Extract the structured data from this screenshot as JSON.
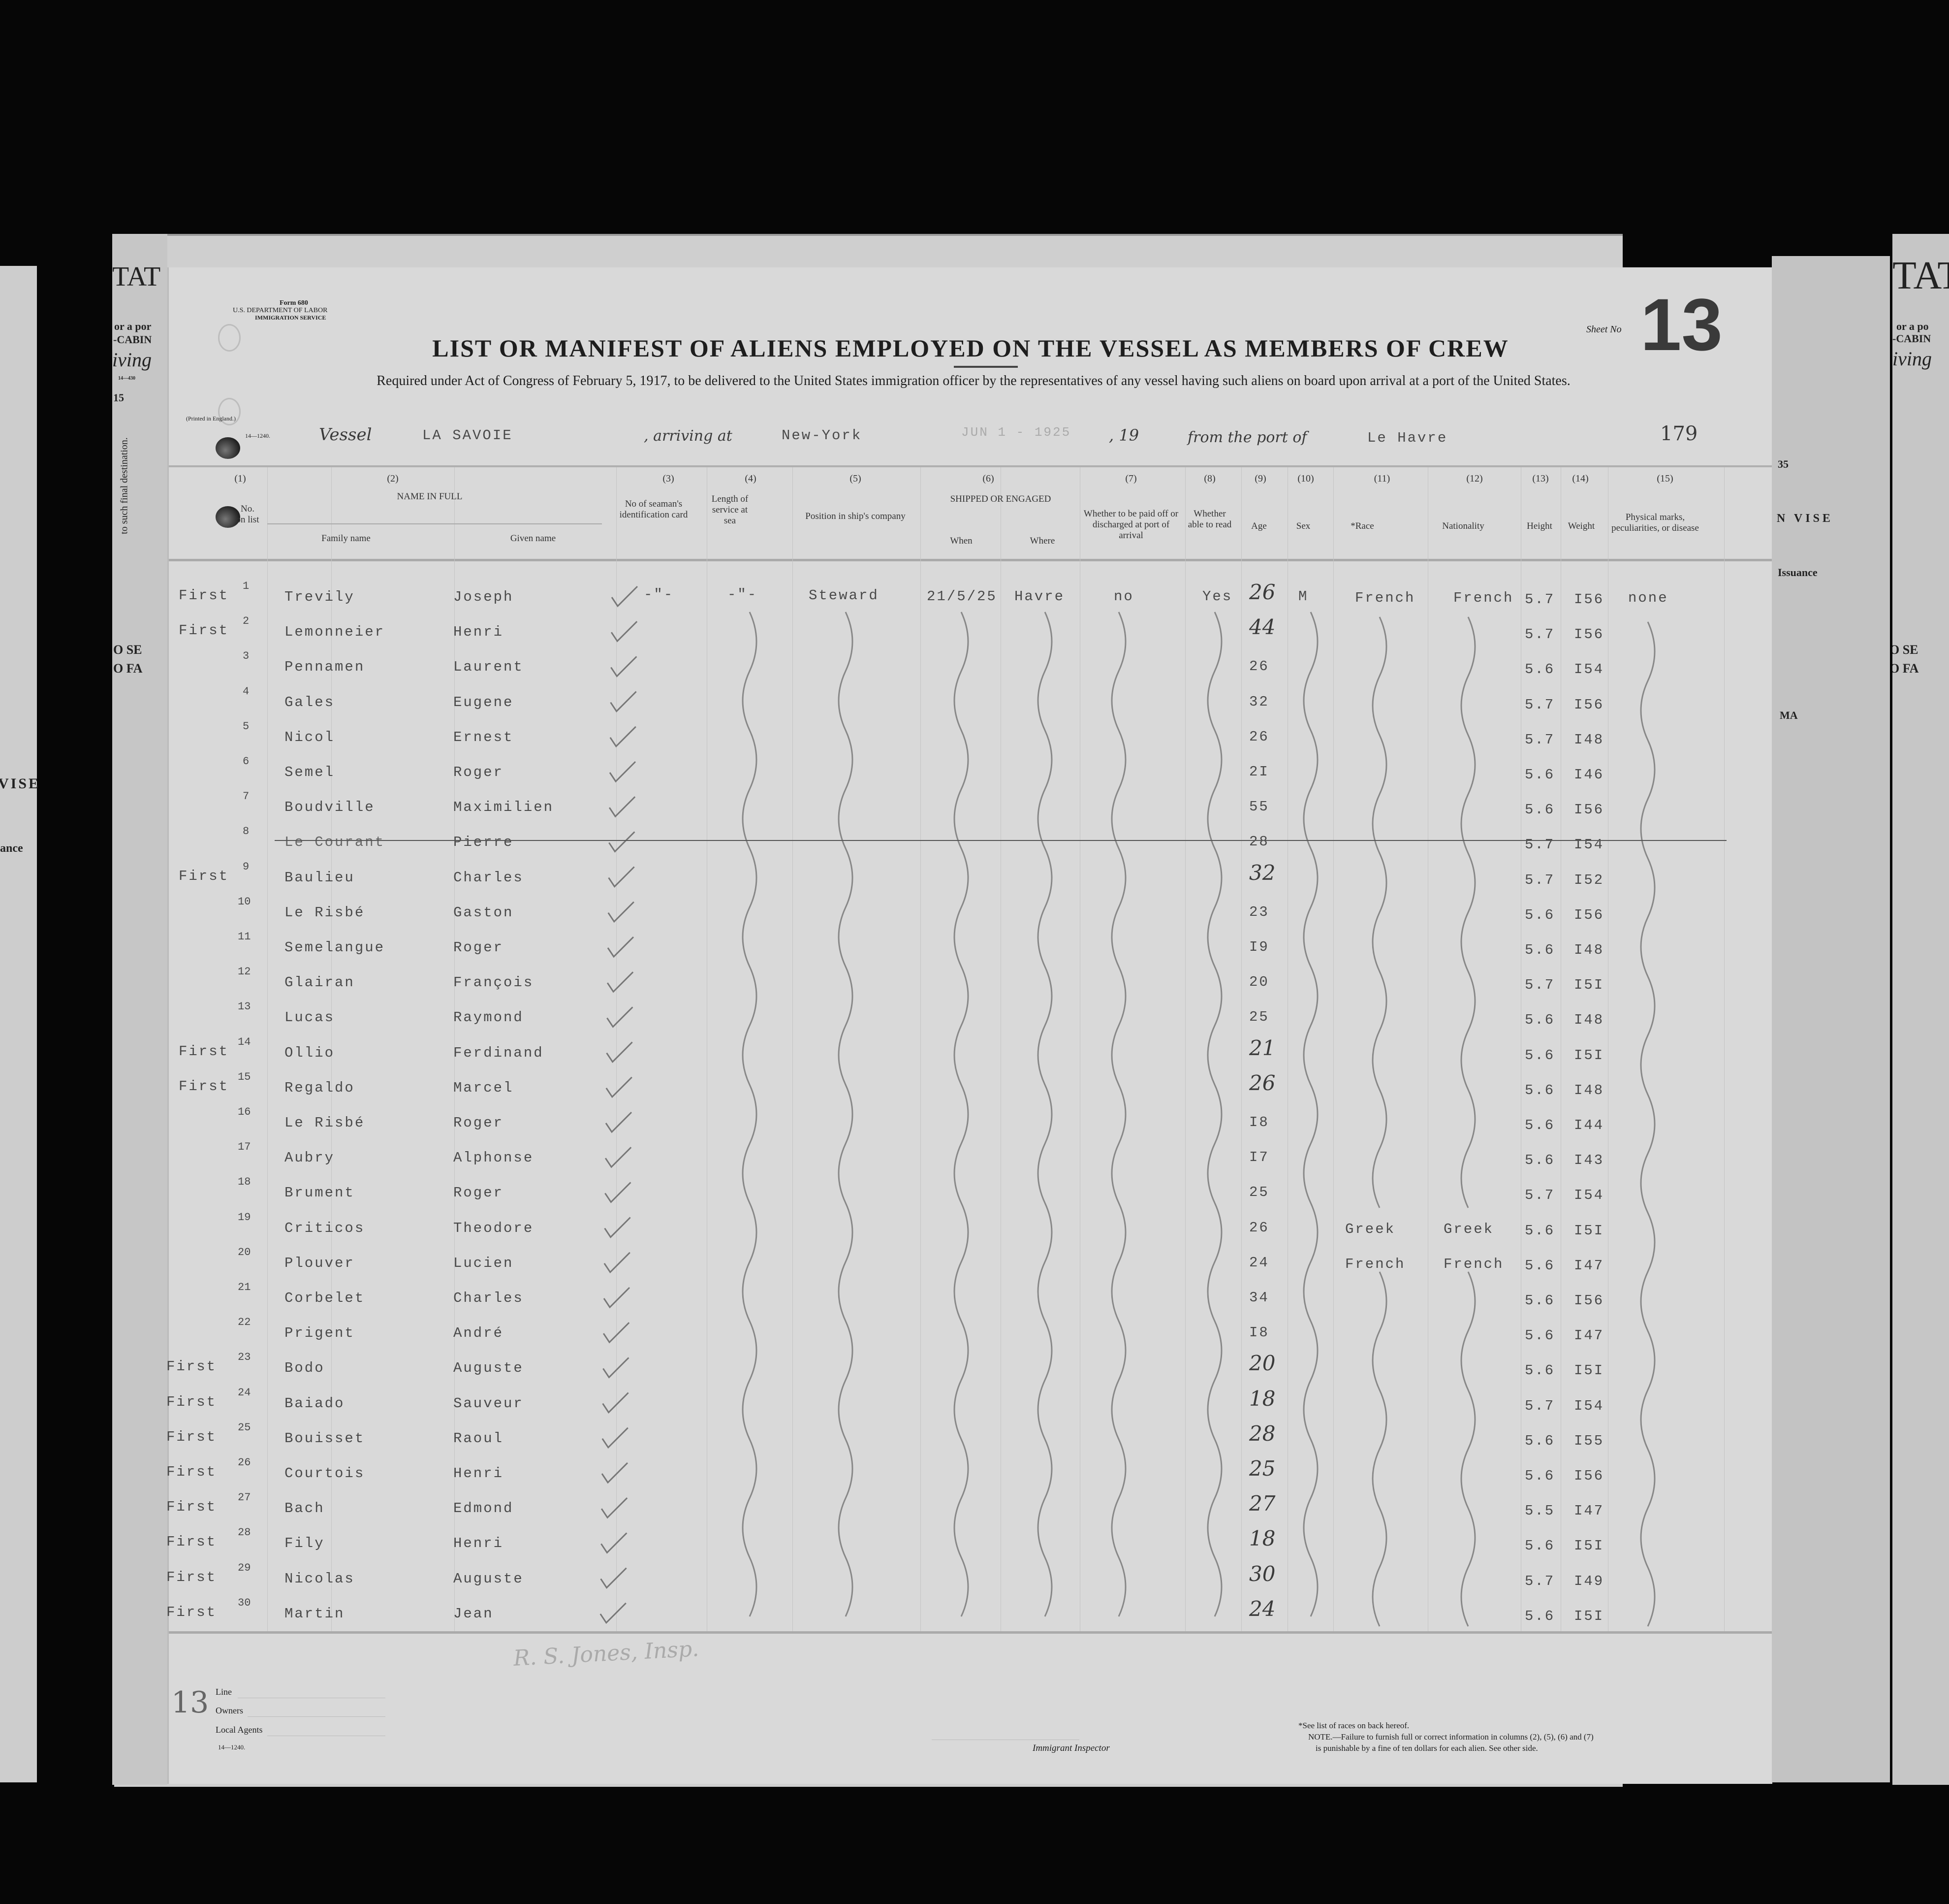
{
  "left_strip": {
    "big": "TAT",
    "l1": "or a por",
    "l2": "-CABIN",
    "l3": "iving",
    "code": "14—430",
    "num": "15",
    "vert": "to such final destination.",
    "vise": "VISE",
    "ance": "ance",
    "r1": "O SE",
    "r2": "O FA"
  },
  "right_strip": {
    "big": "TAT",
    "l1": "or a po",
    "l2": "-CABIN",
    "l3": "iving",
    "num35": "35",
    "vise": "N VISE",
    "issuance": "Issuance",
    "ma": "MA",
    "r1": "O SE",
    "r2": "O FA"
  },
  "form": {
    "form_no": "Form 680",
    "dept": "U.S. DEPARTMENT OF LABOR",
    "service": "IMMIGRATION SERVICE",
    "printed": "(Printed in England.)",
    "code": "14—1240.",
    "sheet_label": "Sheet No",
    "sheet_no": "13",
    "title": "LIST OR MANIFEST OF ALIENS EMPLOYED ON THE VESSEL AS MEMBERS OF CREW",
    "subtitle": "Required under Act of Congress of February 5, 1917, to be delivered to the United States immigration officer by the representatives of any vessel having such aliens on board upon arrival at a port of the United States.",
    "vessel_label": "Vessel",
    "vessel": "LA SAVOIE",
    "arriving_label": ", arriving at",
    "arriving": "New-York",
    "date_stamp": "JUN 1 - 1925",
    "year_label": ", 19",
    "from_label": "from the port of",
    "from_port": "Le Havre",
    "page_no": "179"
  },
  "columns": {
    "nums": [
      "(1)",
      "(2)",
      "(3)",
      "(4)",
      "(5)",
      "(6)",
      "(7)",
      "(8)",
      "(9)",
      "(10)",
      "(11)",
      "(12)",
      "(13)",
      "(14)",
      "(15)"
    ],
    "no_on_list": "No. on list",
    "name_in_full": "NAME IN FULL",
    "family": "Family name",
    "given": "Given name",
    "id_card": "No of seaman's identification card",
    "length": "Length of service at sea",
    "position": "Position in ship's company",
    "shipped": "SHIPPED OR ENGAGED",
    "when": "When",
    "where": "Where",
    "paid_off": "Whether to be paid off or discharged at port of arrival",
    "read": "Whether able to read",
    "age": "Age",
    "sex": "Sex",
    "race": "*Race",
    "nationality": "Nationality",
    "height": "Height",
    "weight": "Weight",
    "marks": "Physical marks, peculiarities, or disease"
  },
  "first_row": {
    "id_card": "-\"-",
    "length": "-\"-",
    "position": "Steward",
    "when": "21/5/25",
    "where": "Havre",
    "paid_off": "no",
    "read": "Yes",
    "sex": "M",
    "marks": "none"
  },
  "rows": [
    {
      "cls": "First",
      "no": "1",
      "family": "Trevily",
      "given": "Joseph",
      "age": "26",
      "hand": true,
      "race": "French",
      "nat": "French",
      "h": "5.7",
      "w": "I56"
    },
    {
      "cls": "First",
      "no": "2",
      "family": "Lemonneier",
      "given": "Henri",
      "age": "44",
      "hand": true,
      "h": "5.7",
      "w": "I56"
    },
    {
      "cls": "",
      "no": "3",
      "family": "Pennamen",
      "given": "Laurent",
      "age": "26",
      "h": "5.6",
      "w": "I54"
    },
    {
      "cls": "",
      "no": "4",
      "family": "Gales",
      "given": "Eugene",
      "age": "32",
      "h": "5.7",
      "w": "I56"
    },
    {
      "cls": "",
      "no": "5",
      "family": "Nicol",
      "given": "Ernest",
      "age": "26",
      "h": "5.7",
      "w": "I48"
    },
    {
      "cls": "",
      "no": "6",
      "family": "Semel",
      "given": "Roger",
      "age": "2I",
      "h": "5.6",
      "w": "I46"
    },
    {
      "cls": "",
      "no": "7",
      "family": "Boudville",
      "given": "Maximilien",
      "age": "55",
      "h": "5.6",
      "w": "I56"
    },
    {
      "cls": "",
      "no": "8",
      "family": "Le Courant",
      "given": "Pierre",
      "age": "28",
      "h": "5.7",
      "w": "I54",
      "struck": true
    },
    {
      "cls": "First",
      "no": "9",
      "family": "Baulieu",
      "given": "Charles",
      "age": "32",
      "hand": true,
      "h": "5.7",
      "w": "I52"
    },
    {
      "cls": "",
      "no": "10",
      "family": "Le Risbé",
      "given": "Gaston",
      "age": "23",
      "h": "5.6",
      "w": "I56"
    },
    {
      "cls": "",
      "no": "11",
      "family": "Semelangue",
      "given": "Roger",
      "age": "I9",
      "h": "5.6",
      "w": "I48"
    },
    {
      "cls": "",
      "no": "12",
      "family": "Glairan",
      "given": "François",
      "age": "20",
      "h": "5.7",
      "w": "I5I"
    },
    {
      "cls": "",
      "no": "13",
      "family": "Lucas",
      "given": "Raymond",
      "age": "25",
      "h": "5.6",
      "w": "I48"
    },
    {
      "cls": "First",
      "no": "14",
      "family": "Ollio",
      "given": "Ferdinand",
      "age": "21",
      "hand": true,
      "h": "5.6",
      "w": "I5I"
    },
    {
      "cls": "First",
      "no": "15",
      "family": "Regaldo",
      "given": "Marcel",
      "age": "26",
      "hand": true,
      "h": "5.6",
      "w": "I48"
    },
    {
      "cls": "",
      "no": "16",
      "family": "Le Risbé",
      "given": "Roger",
      "age": "I8",
      "h": "5.6",
      "w": "I44"
    },
    {
      "cls": "",
      "no": "17",
      "family": "Aubry",
      "given": "Alphonse",
      "age": "I7",
      "h": "5.6",
      "w": "I43"
    },
    {
      "cls": "",
      "no": "18",
      "family": "Brument",
      "given": "Roger",
      "age": "25",
      "h": "5.7",
      "w": "I54"
    },
    {
      "cls": "",
      "no": "19",
      "family": "Criticos",
      "given": "Theodore",
      "age": "26",
      "race": "Greek",
      "nat": "Greek",
      "h": "5.6",
      "w": "I5I"
    },
    {
      "cls": "",
      "no": "20",
      "family": "Plouver",
      "given": "Lucien",
      "age": "24",
      "race": "French",
      "nat": "French",
      "h": "5.6",
      "w": "I47"
    },
    {
      "cls": "",
      "no": "21",
      "family": "Corbelet",
      "given": "Charles",
      "age": "34",
      "h": "5.6",
      "w": "I56"
    },
    {
      "cls": "",
      "no": "22",
      "family": "Prigent",
      "given": "André",
      "age": "I8",
      "h": "5.6",
      "w": "I47"
    },
    {
      "cls": "First",
      "no": "23",
      "family": "Bodo",
      "given": "Auguste",
      "age": "20",
      "hand": true,
      "h": "5.6",
      "w": "I5I"
    },
    {
      "cls": "First",
      "no": "24",
      "family": "Baiado",
      "given": "Sauveur",
      "age": "18",
      "hand": true,
      "h": "5.7",
      "w": "I54"
    },
    {
      "cls": "First",
      "no": "25",
      "family": "Bouisset",
      "given": "Raoul",
      "age": "28",
      "hand": true,
      "h": "5.6",
      "w": "I55"
    },
    {
      "cls": "First",
      "no": "26",
      "family": "Courtois",
      "given": "Henri",
      "age": "25",
      "hand": true,
      "h": "5.6",
      "w": "I56"
    },
    {
      "cls": "First",
      "no": "27",
      "family": "Bach",
      "given": "Edmond",
      "age": "27",
      "hand": true,
      "h": "5.5",
      "w": "I47"
    },
    {
      "cls": "First",
      "no": "28",
      "family": "Fily",
      "given": "Henri",
      "age": "18",
      "hand": true,
      "h": "5.6",
      "w": "I5I"
    },
    {
      "cls": "First",
      "no": "29",
      "family": "Nicolas",
      "given": "Auguste",
      "age": "30",
      "hand": true,
      "h": "5.7",
      "w": "I49"
    },
    {
      "cls": "First",
      "no": "30",
      "family": "Martin",
      "given": "Jean",
      "age": "24",
      "hand": true,
      "h": "5.6",
      "w": "I5I"
    }
  ],
  "footer": {
    "sheet_mark": "13",
    "signature": "R. S. Jones, Insp.",
    "line": "Line",
    "owners": "Owners",
    "agents": "Local Agents",
    "code": "14—1240.",
    "inspector": "Immigrant Inspector",
    "races_note": "*See list of races on back hereof.",
    "note1": "NOTE.—Failure to furnish full or correct information in columns (2), (5), (6) and (7)",
    "note2": "is punishable by a fine of ten dollars for each alien.  See other side."
  }
}
